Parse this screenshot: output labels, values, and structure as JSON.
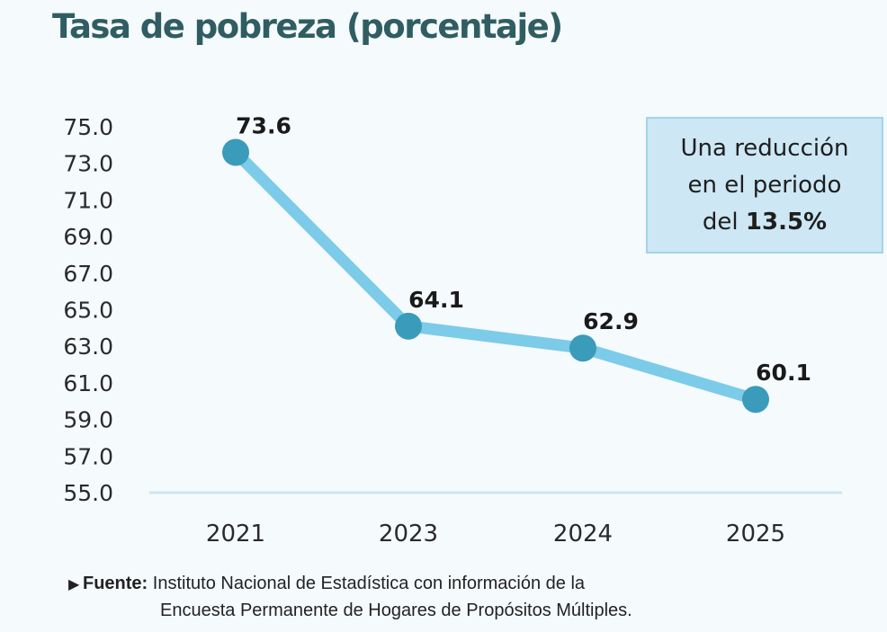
{
  "chart_data": {
    "type": "line",
    "title": "Tasa de pobreza (porcentaje)",
    "categories": [
      "2021",
      "2023",
      "2024",
      "2025"
    ],
    "series": [
      {
        "values": [
          73.6,
          64.1,
          62.9,
          60.1
        ]
      }
    ],
    "data_labels": [
      "73.6",
      "64.1",
      "62.9",
      "60.1"
    ],
    "y_ticks": [
      "55.0",
      "57.0",
      "59.0",
      "61.0",
      "63.0",
      "65.0",
      "67.0",
      "69.0",
      "71.0",
      "73.0",
      "75.0"
    ],
    "ylim": [
      55,
      75
    ],
    "grid": false,
    "colors": {
      "line": "#7ccbe8",
      "marker": "#3a9bbb",
      "axis": "#cde5ef"
    }
  },
  "callout": {
    "line1": "Una reducción",
    "line2": "en el periodo",
    "line3_prefix": "del ",
    "line3_value": "13.5%"
  },
  "source": {
    "label": "Fuente:",
    "text_line1": " Instituto Nacional de Estadística con información de la",
    "text_line2": "Encuesta Permanente de Hogares de Propósitos Múltiples."
  }
}
